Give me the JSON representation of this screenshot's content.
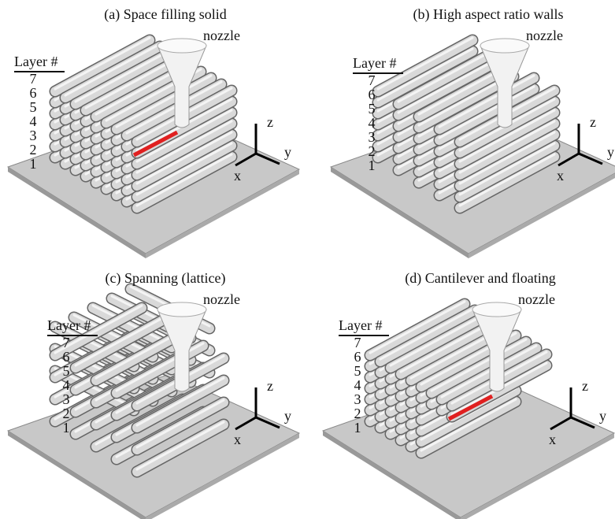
{
  "panels": [
    {
      "title": "(a) Space filling solid",
      "nozzle": "nozzle",
      "layer_header": "Layer #",
      "layers": [
        7,
        6,
        5,
        4,
        3,
        2,
        1
      ],
      "axes": {
        "z": "z",
        "x": "x",
        "y": "y"
      }
    },
    {
      "title": "(b) High aspect ratio walls",
      "nozzle": "nozzle",
      "layer_header": "Layer #",
      "layers": [
        7,
        6,
        5,
        4,
        3,
        2,
        1
      ],
      "axes": {
        "z": "z",
        "x": "x",
        "y": "y"
      }
    },
    {
      "title": "(c) Spanning (lattice)",
      "nozzle": "nozzle",
      "layer_header": "Layer #",
      "layers": [
        7,
        6,
        5,
        4,
        3,
        2,
        1
      ],
      "axes": {
        "z": "z",
        "x": "x",
        "y": "y"
      }
    },
    {
      "title": "(d) Cantilever and floating",
      "nozzle": "nozzle",
      "layer_header": "Layer #",
      "layers": [
        7,
        6,
        5,
        4,
        3,
        2,
        1
      ],
      "axes": {
        "z": "z",
        "x": "x",
        "y": "y"
      }
    }
  ]
}
